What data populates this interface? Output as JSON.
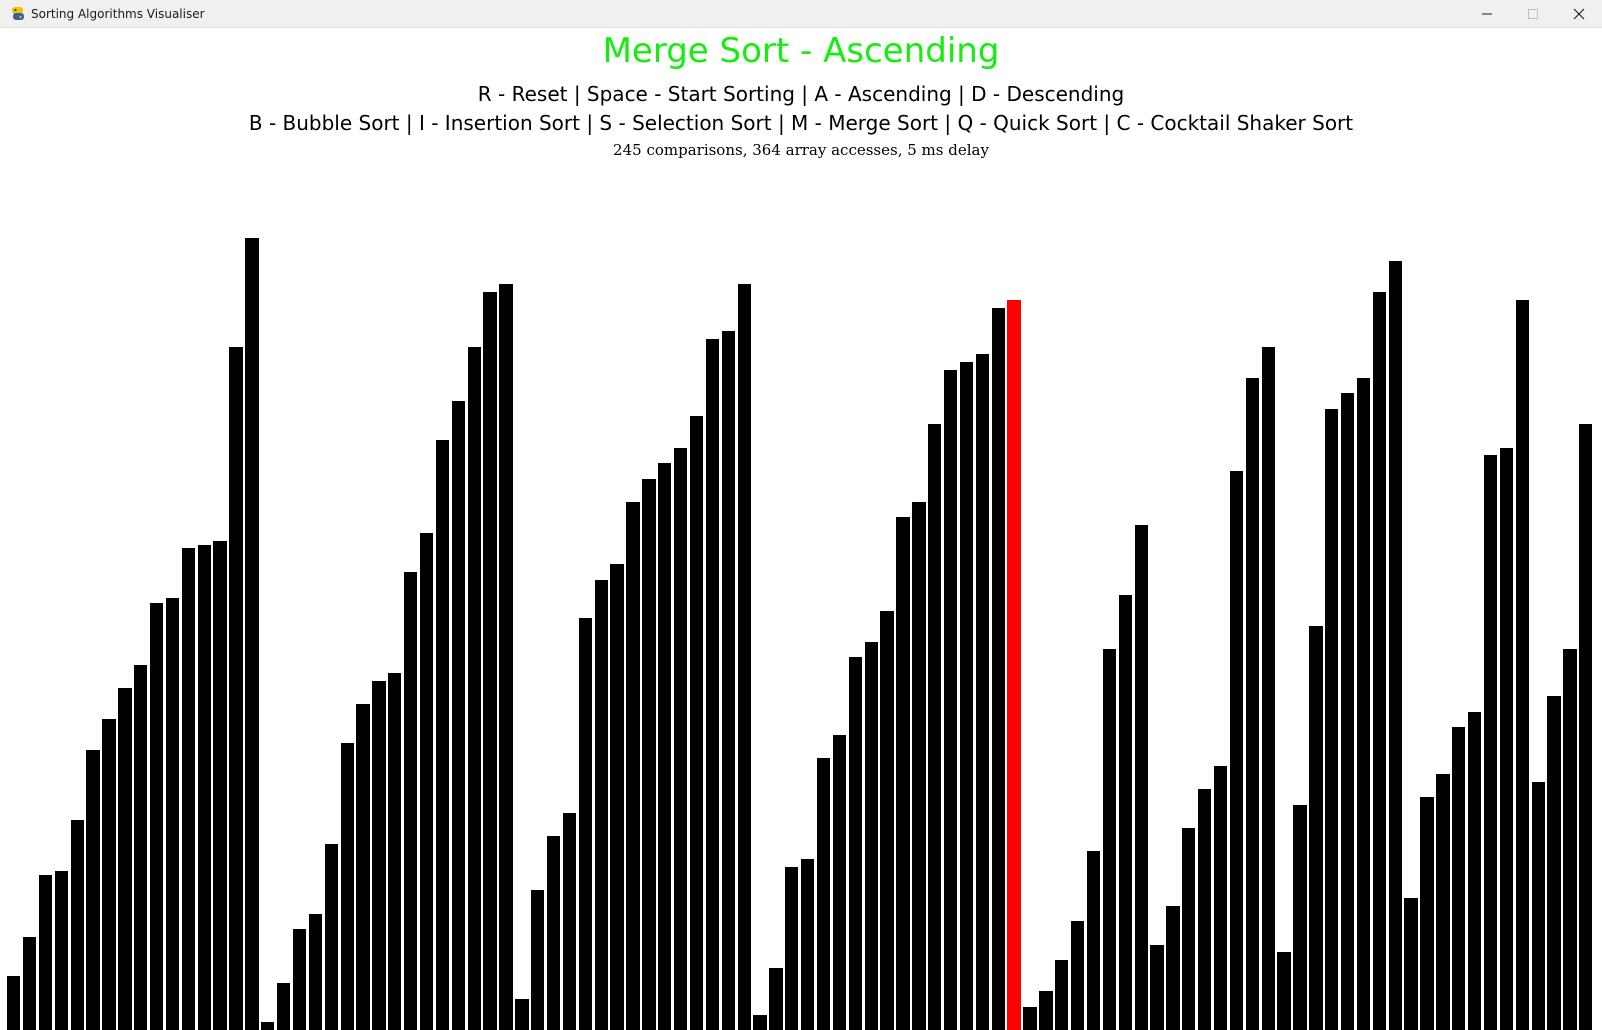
{
  "window": {
    "title": "Sorting Algorithms Visualiser",
    "icon": "python-icon",
    "controls": [
      "minimize-icon",
      "maximize-icon",
      "close-icon"
    ]
  },
  "header": {
    "title": "Merge Sort - Ascending",
    "title_color": "#17ec0f",
    "controls_line1": "R - Reset | Space - Start Sorting | A - Ascending | D - Descending",
    "controls_line2": "B - Bubble Sort | I - Insertion Sort | S - Selection Sort | M - Merge Sort | Q - Quick Sort | C - Cocktail Shaker Sort",
    "stats": "245 comparisons, 364 array accesses, 5 ms delay"
  },
  "visualiser": {
    "bar_color": "#000000",
    "highlight_color": "#ff0000",
    "highlight_index": 63,
    "values": [
      7,
      12,
      20,
      20.5,
      27,
      36,
      40,
      44,
      47,
      55,
      55.6,
      62,
      62.5,
      63,
      88,
      102,
      1,
      6,
      13,
      15,
      24,
      37,
      42,
      45,
      46,
      59,
      64,
      76,
      81,
      88,
      95,
      96,
      4,
      18,
      25,
      28,
      53,
      58,
      60,
      68,
      71,
      73,
      75,
      79,
      89,
      90,
      96,
      2,
      8,
      21,
      22,
      35,
      38,
      48,
      50,
      54,
      66,
      68,
      78,
      85,
      86,
      87,
      93,
      94,
      3,
      5,
      9,
      14,
      23,
      49,
      56,
      65,
      11,
      16,
      26,
      31,
      34,
      72,
      84,
      88,
      10,
      29,
      52,
      80,
      82,
      84,
      95,
      99,
      17,
      30,
      33,
      39,
      41,
      74,
      75,
      94,
      32,
      43,
      49,
      78
    ]
  }
}
